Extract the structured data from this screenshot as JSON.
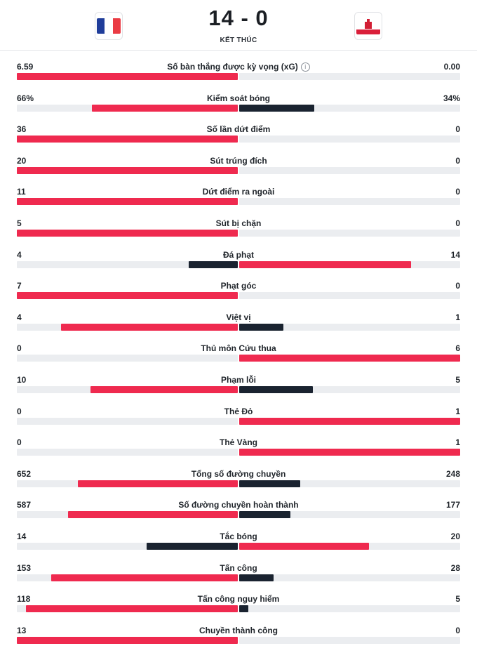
{
  "match": {
    "score": "14 - 0",
    "status": "KẾT THÚC",
    "home_flag": "flag-france",
    "away_flag": "flag-gibraltar"
  },
  "colors": {
    "leader": "#ef2a4f",
    "trailer": "#1a2330",
    "track": "#ebedf0",
    "france_blue": "#1f3d9a",
    "france_red": "#ea3b44"
  },
  "stats": [
    {
      "label": "Số bàn thắng được kỳ vọng (xG)",
      "home": "6.59",
      "away": "0.00",
      "home_val": 6.59,
      "away_val": 0,
      "info": true
    },
    {
      "label": "Kiểm soát bóng",
      "home": "66%",
      "away": "34%",
      "home_val": 66,
      "away_val": 34
    },
    {
      "label": "Số lần dứt điểm",
      "home": "36",
      "away": "0",
      "home_val": 36,
      "away_val": 0
    },
    {
      "label": "Sút trúng đích",
      "home": "20",
      "away": "0",
      "home_val": 20,
      "away_val": 0
    },
    {
      "label": "Dứt điểm ra ngoài",
      "home": "11",
      "away": "0",
      "home_val": 11,
      "away_val": 0
    },
    {
      "label": "Sút bị chặn",
      "home": "5",
      "away": "0",
      "home_val": 5,
      "away_val": 0
    },
    {
      "label": "Đá phạt",
      "home": "4",
      "away": "14",
      "home_val": 4,
      "away_val": 14
    },
    {
      "label": "Phạt góc",
      "home": "7",
      "away": "0",
      "home_val": 7,
      "away_val": 0
    },
    {
      "label": "Việt vị",
      "home": "4",
      "away": "1",
      "home_val": 4,
      "away_val": 1
    },
    {
      "label": "Thủ môn Cứu thua",
      "home": "0",
      "away": "6",
      "home_val": 0,
      "away_val": 6
    },
    {
      "label": "Phạm lỗi",
      "home": "10",
      "away": "5",
      "home_val": 10,
      "away_val": 5
    },
    {
      "label": "Thẻ Đỏ",
      "home": "0",
      "away": "1",
      "home_val": 0,
      "away_val": 1
    },
    {
      "label": "Thẻ Vàng",
      "home": "0",
      "away": "1",
      "home_val": 0,
      "away_val": 1
    },
    {
      "label": "Tổng số đường chuyền",
      "home": "652",
      "away": "248",
      "home_val": 652,
      "away_val": 248
    },
    {
      "label": "Số đường chuyền hoàn thành",
      "home": "587",
      "away": "177",
      "home_val": 587,
      "away_val": 177
    },
    {
      "label": "Tắc bóng",
      "home": "14",
      "away": "20",
      "home_val": 14,
      "away_val": 20
    },
    {
      "label": "Tấn công",
      "home": "153",
      "away": "28",
      "home_val": 153,
      "away_val": 28
    },
    {
      "label": "Tấn công nguy hiểm",
      "home": "118",
      "away": "5",
      "home_val": 118,
      "away_val": 5
    },
    {
      "label": "Chuyền thành công",
      "home": "13",
      "away": "0",
      "home_val": 13,
      "away_val": 0
    }
  ]
}
